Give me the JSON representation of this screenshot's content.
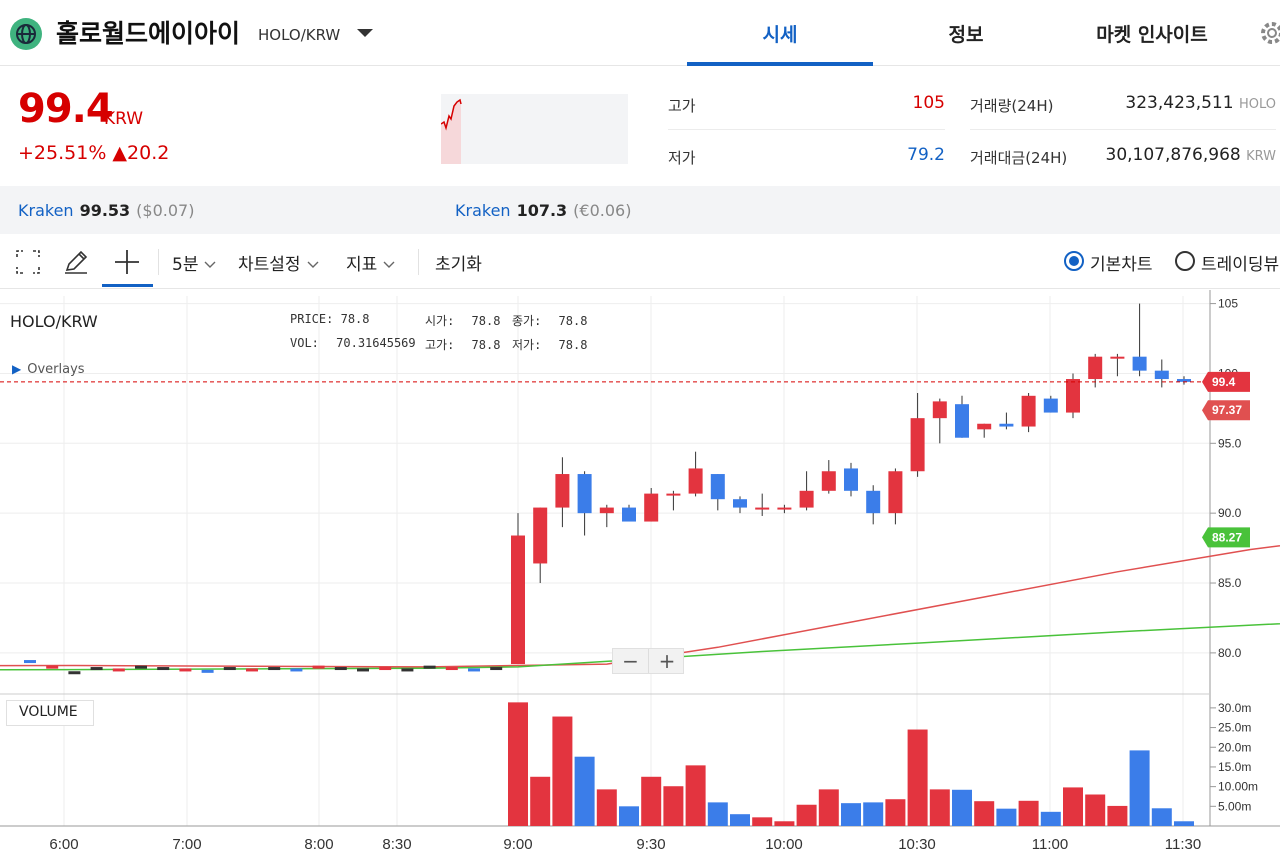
{
  "header": {
    "coin_name": "홀로월드에이아이",
    "pair": "HOLO/KRW",
    "tabs": [
      "시세",
      "정보",
      "마켓 인사이트"
    ],
    "active_tab": 0
  },
  "ticker": {
    "price": "99.4",
    "unit": "KRW",
    "change": "+25.51% ▲20.2",
    "high_label": "고가",
    "high_value": "105",
    "low_label": "저가",
    "low_value": "79.2",
    "volume_label": "거래량(24H)",
    "volume_value": "323,423,511",
    "volume_unit": "HOLO",
    "amount_label": "거래대금(24H)",
    "amount_value": "30,107,876,968",
    "amount_unit": "KRW",
    "colors": {
      "up": "#d60000",
      "down": "#1261c4"
    }
  },
  "exchanges": [
    {
      "name": "Kraken",
      "value": "99.53",
      "sub": "($0.07)"
    },
    {
      "name": "Kraken",
      "value": "107.3",
      "sub": "(€0.06)"
    }
  ],
  "toolbar": {
    "interval": "5분",
    "chart_settings": "차트설정",
    "indicators": "지표",
    "reset": "초기화",
    "radio_basic": "기본차트",
    "radio_tv": "트레이딩뷰",
    "icons": [
      "fullscreen-icon",
      "pencil-icon",
      "crosshair-icon"
    ]
  },
  "chart_info": {
    "pair": "HOLO/KRW",
    "price_label": "PRICE:",
    "price_value": "78.8",
    "vol_label": "VOL:",
    "vol_value": "70.31645569",
    "open_label": "시가:",
    "open_value": "78.8",
    "high_label": "고가:",
    "high_value": "78.8",
    "close_label": "종가:",
    "close_value": "78.8",
    "low_label": "저가:",
    "low_value": "78.8",
    "overlays": "Overlays",
    "volume": "VOLUME",
    "zoom_out": "−",
    "zoom_in": "+"
  },
  "chart_data": {
    "type": "candlestick",
    "time_ticks": [
      "6:00",
      "7:00",
      "8:00",
      "8:30",
      "9:00",
      "9:30",
      "10:00",
      "10:30",
      "11:00",
      "11:30"
    ],
    "price_ticks": [
      "105",
      "100",
      "95.0",
      "90.0",
      "85.0",
      "80.0"
    ],
    "volume_ticks": [
      "30.0m",
      "25.0m",
      "20.0m",
      "15.0m",
      "10.00m",
      "5.00m"
    ],
    "current_price_label": "99.4",
    "ma_short_label": "97.37",
    "ma_long_label": "88.27",
    "colors": {
      "up": "#e3343f",
      "down": "#3b7de9",
      "ma_short": "#e05050",
      "ma_long": "#49c23a"
    },
    "pre_candles": [
      79.4,
      79.0,
      78.6,
      78.9,
      78.8,
      79.0,
      78.9,
      78.8,
      78.7,
      78.9,
      78.8,
      78.9,
      78.8,
      79.0,
      78.9,
      78.8,
      78.9,
      78.8,
      79.0,
      78.9,
      78.8,
      78.9
    ],
    "candles": [
      {
        "o": 79.2,
        "h": 90.0,
        "l": 79.2,
        "c": 88.4
      },
      {
        "o": 86.4,
        "h": 90.4,
        "l": 85.0,
        "c": 90.4
      },
      {
        "o": 90.4,
        "h": 94.0,
        "l": 89.0,
        "c": 92.8
      },
      {
        "o": 92.8,
        "h": 93.0,
        "l": 88.4,
        "c": 90.0
      },
      {
        "o": 90.0,
        "h": 90.6,
        "l": 89.0,
        "c": 90.4
      },
      {
        "o": 90.4,
        "h": 90.6,
        "l": 89.4,
        "c": 89.4
      },
      {
        "o": 89.4,
        "h": 91.8,
        "l": 89.4,
        "c": 91.4
      },
      {
        "o": 91.4,
        "h": 91.6,
        "l": 90.2,
        "c": 91.4
      },
      {
        "o": 91.4,
        "h": 94.4,
        "l": 91.2,
        "c": 93.2
      },
      {
        "o": 92.8,
        "h": 92.8,
        "l": 90.2,
        "c": 91.0
      },
      {
        "o": 91.0,
        "h": 91.2,
        "l": 90.0,
        "c": 90.4
      },
      {
        "o": 90.4,
        "h": 91.4,
        "l": 89.8,
        "c": 90.4
      },
      {
        "o": 90.4,
        "h": 90.6,
        "l": 90.0,
        "c": 90.4
      },
      {
        "o": 90.4,
        "h": 93.0,
        "l": 90.2,
        "c": 91.6
      },
      {
        "o": 91.6,
        "h": 93.8,
        "l": 91.4,
        "c": 93.0
      },
      {
        "o": 93.2,
        "h": 93.6,
        "l": 91.2,
        "c": 91.6
      },
      {
        "o": 91.6,
        "h": 92.0,
        "l": 89.2,
        "c": 90.0
      },
      {
        "o": 90.0,
        "h": 93.2,
        "l": 89.2,
        "c": 93.0
      },
      {
        "o": 93.0,
        "h": 98.6,
        "l": 92.6,
        "c": 96.8
      },
      {
        "o": 96.8,
        "h": 98.2,
        "l": 95.0,
        "c": 98.0
      },
      {
        "o": 97.8,
        "h": 98.4,
        "l": 95.4,
        "c": 95.4
      },
      {
        "o": 96.0,
        "h": 96.4,
        "l": 95.4,
        "c": 96.4
      },
      {
        "o": 96.4,
        "h": 97.2,
        "l": 96.0,
        "c": 96.2
      },
      {
        "o": 96.2,
        "h": 98.6,
        "l": 95.8,
        "c": 98.4
      },
      {
        "o": 98.2,
        "h": 98.4,
        "l": 97.2,
        "c": 97.2
      },
      {
        "o": 97.2,
        "h": 100.0,
        "l": 96.8,
        "c": 99.6
      },
      {
        "o": 99.6,
        "h": 101.4,
        "l": 99.0,
        "c": 101.2
      },
      {
        "o": 101.2,
        "h": 101.4,
        "l": 99.8,
        "c": 101.2
      },
      {
        "o": 101.2,
        "h": 105.0,
        "l": 99.8,
        "c": 100.2
      },
      {
        "o": 100.2,
        "h": 101.0,
        "l": 99.0,
        "c": 99.6
      },
      {
        "o": 99.6,
        "h": 99.8,
        "l": 99.2,
        "c": 99.4
      }
    ],
    "volume_m": [
      31.4,
      12.5,
      27.8,
      17.6,
      9.3,
      5.0,
      12.5,
      10.1,
      15.4,
      6.0,
      3.0,
      2.2,
      1.2,
      5.4,
      9.3,
      5.8,
      6.0,
      6.8,
      24.5,
      9.3,
      9.2,
      6.3,
      4.4,
      6.4,
      3.6,
      9.8,
      8.0,
      5.1,
      19.2,
      4.5,
      1.2
    ],
    "ma_short": [
      [
        4,
        79.2
      ],
      [
        9,
        80.4
      ],
      [
        15,
        82.2
      ],
      [
        21,
        84.0
      ],
      [
        27,
        85.8
      ],
      [
        33,
        87.4
      ],
      [
        39,
        88.6
      ],
      [
        45,
        89.9
      ],
      [
        47,
        90.2
      ],
      [
        53,
        90.3
      ],
      [
        56,
        90.6
      ],
      [
        60,
        91.4
      ],
      [
        66,
        92.5
      ],
      [
        72,
        93.0
      ],
      [
        78,
        93.6
      ],
      [
        82,
        94.2
      ],
      [
        87,
        95.0
      ],
      [
        91,
        95.8
      ],
      [
        95,
        96.6
      ],
      [
        99,
        97.37
      ]
    ],
    "ma_long": [
      [
        -46,
        78.7
      ],
      [
        -20,
        78.8
      ],
      [
        -4,
        78.9
      ],
      [
        0,
        79.0
      ],
      [
        6,
        79.6
      ],
      [
        11,
        80.1
      ],
      [
        18,
        80.7
      ],
      [
        27,
        81.5
      ],
      [
        37,
        82.3
      ],
      [
        47,
        83.2
      ],
      [
        57,
        84.3
      ],
      [
        67,
        85.3
      ],
      [
        77,
        86.2
      ],
      [
        87,
        87.4
      ],
      [
        96,
        88.27
      ]
    ]
  }
}
